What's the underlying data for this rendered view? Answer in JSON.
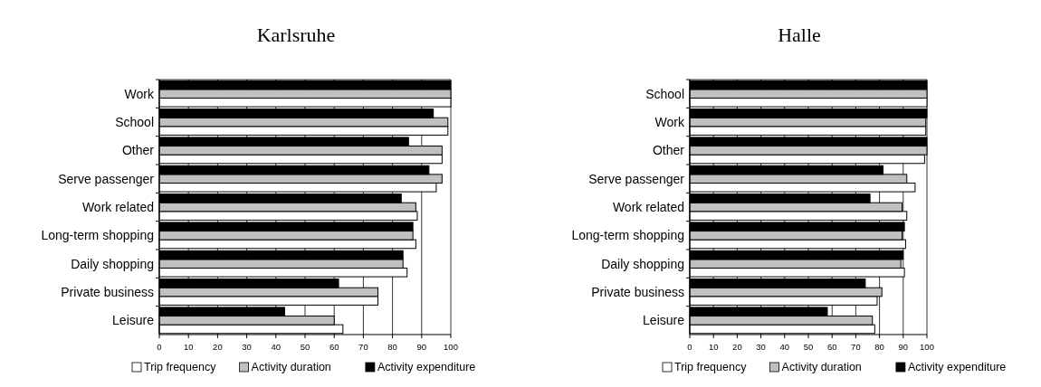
{
  "chart_data": [
    {
      "type": "bar",
      "orientation": "horizontal",
      "title": "Karlsruhe",
      "categories": [
        "Work",
        "School",
        "Other",
        "Serve passenger",
        "Work related",
        "Long-term shopping",
        "Daily shopping",
        "Private business",
        "Leisure"
      ],
      "series": [
        {
          "name": "Trip frequency",
          "color": "#ffffff",
          "values": [
            100,
            99,
            97,
            95,
            88.5,
            88,
            85,
            75,
            63
          ]
        },
        {
          "name": "Activity duration",
          "color": "#c0c0c0",
          "values": [
            100,
            99,
            97,
            97,
            88,
            87,
            83.6,
            75,
            60
          ]
        },
        {
          "name": "Activity expenditure",
          "color": "#000000",
          "values": [
            100,
            94,
            85.5,
            92.5,
            83,
            87,
            83.6,
            61.5,
            43
          ]
        }
      ],
      "xlim": [
        0,
        100
      ],
      "xticks": [
        0,
        10,
        20,
        30,
        40,
        50,
        60,
        70,
        80,
        90,
        100
      ],
      "grid": "x",
      "legend": "bottom"
    },
    {
      "type": "bar",
      "orientation": "horizontal",
      "title": "Halle",
      "categories": [
        "School",
        "Work",
        "Other",
        "Serve passenger",
        "Work related",
        "Long-term shopping",
        "Daily shopping",
        "Private business",
        "Leisure"
      ],
      "series": [
        {
          "name": "Trip frequency",
          "color": "#ffffff",
          "values": [
            100,
            99.5,
            99,
            95,
            91.5,
            91,
            90.5,
            79,
            78
          ]
        },
        {
          "name": "Activity duration",
          "color": "#c0c0c0",
          "values": [
            100,
            99.5,
            100,
            91.5,
            89.5,
            89.5,
            89,
            81,
            77
          ]
        },
        {
          "name": "Activity expenditure",
          "color": "#000000",
          "values": [
            100,
            100,
            100,
            81.5,
            76,
            90.5,
            90,
            74,
            58
          ]
        }
      ],
      "xlim": [
        0,
        100
      ],
      "xticks": [
        0,
        10,
        20,
        30,
        40,
        50,
        60,
        70,
        80,
        90,
        100
      ],
      "grid": "x",
      "legend": "bottom"
    }
  ]
}
